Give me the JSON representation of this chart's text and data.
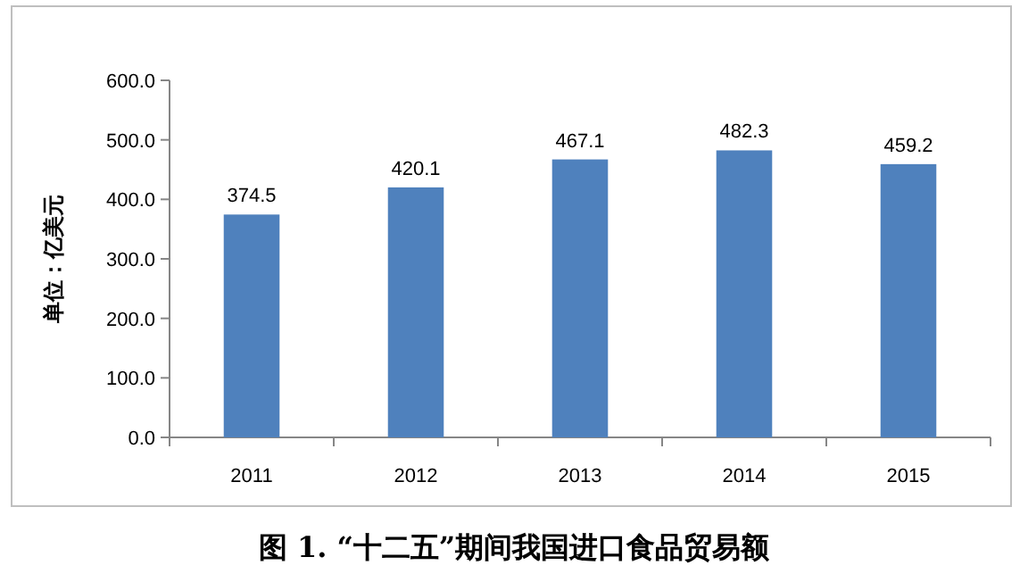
{
  "chart_data": {
    "type": "bar",
    "title": "图 1. “十二五”期间我国进口食品贸易额",
    "ylabel": "单位：亿美元",
    "categories": [
      "2011",
      "2012",
      "2013",
      "2014",
      "2015"
    ],
    "values": [
      374.5,
      420.1,
      467.1,
      482.3,
      459.2
    ],
    "color": "#4f81bd",
    "data_labels": true,
    "ylim": [
      0,
      600
    ],
    "yticks": [
      {
        "value": 0,
        "label": "0.0"
      },
      {
        "value": 100,
        "label": "100.0"
      },
      {
        "value": 200,
        "label": "200.0"
      },
      {
        "value": 300,
        "label": "300.0"
      },
      {
        "value": 400,
        "label": "400.0"
      },
      {
        "value": 500,
        "label": "500.0"
      },
      {
        "value": 600,
        "label": "600.0"
      }
    ]
  }
}
